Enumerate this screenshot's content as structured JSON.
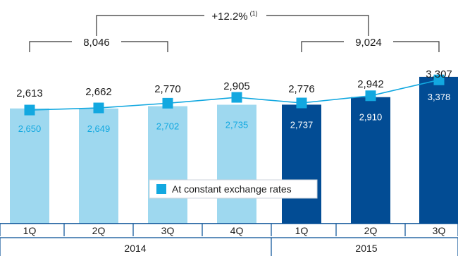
{
  "chart_data": {
    "type": "bar",
    "categories": [
      "1Q",
      "2Q",
      "3Q",
      "4Q",
      "1Q",
      "2Q",
      "3Q"
    ],
    "years": [
      {
        "label": "2014",
        "quarters": 4
      },
      {
        "label": "2015",
        "quarters": 3
      }
    ],
    "series": [
      {
        "values": [
          2650,
          2649,
          2702,
          2735,
          2737,
          2910,
          3378
        ],
        "labels": [
          "2,650",
          "2,649",
          "2,702",
          "2,735",
          "2,737",
          "2,910",
          "3,378"
        ]
      },
      {
        "name": "At constant exchange rates",
        "values": [
          2613,
          2662,
          2770,
          2905,
          2776,
          2942,
          3307
        ],
        "labels": [
          "2,613",
          "2,662",
          "2,770",
          "2,905",
          "2,776",
          "2,942",
          "3,307"
        ]
      }
    ],
    "brackets": {
      "y2014_total": "8,046",
      "y2015_total": "9,024",
      "growth": "+12.2%",
      "growth_note": "(1)"
    },
    "ylim": [
      0,
      3500
    ],
    "legend_placement": "center",
    "colors": {
      "bar_2014": "#9ED8EF",
      "bar_2015": "#024C94",
      "line": "#12A8E0",
      "marker": "#12A8E0",
      "text_dark": "#1A1A1A",
      "label_on_light": "#12A8E0",
      "label_on_dark": "#FFFFFF",
      "axis": "#024C94",
      "bracket": "#333333"
    }
  }
}
